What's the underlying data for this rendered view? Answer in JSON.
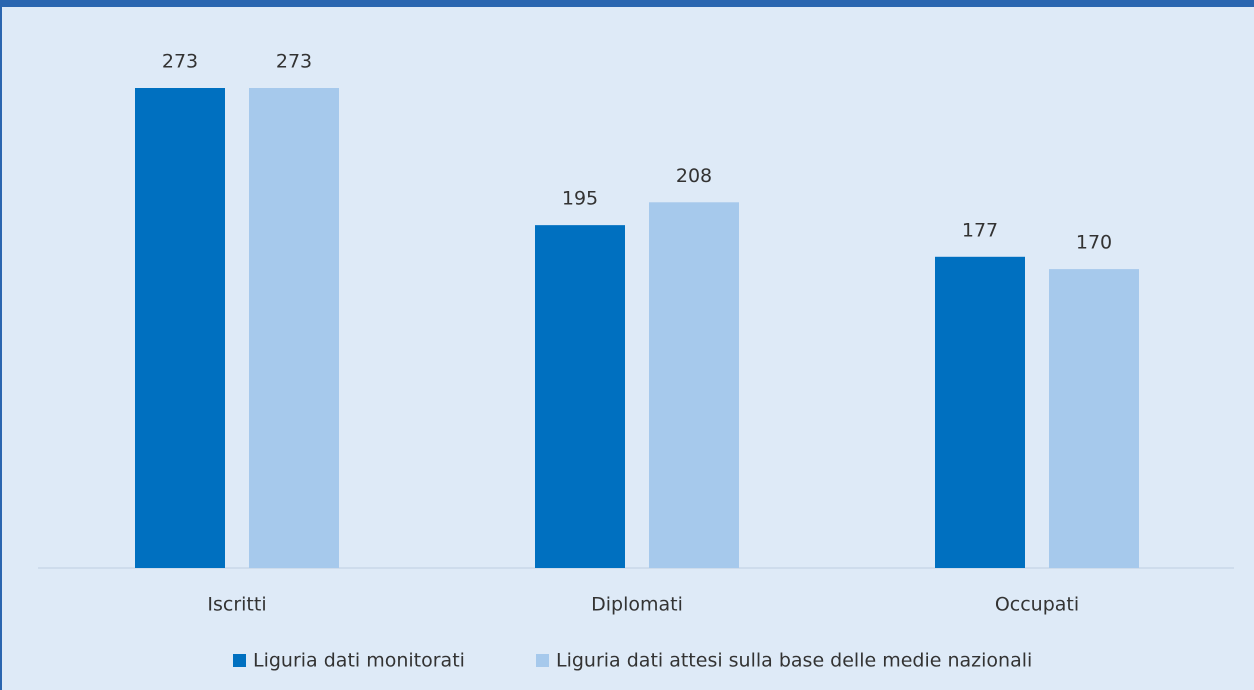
{
  "chart_data": {
    "type": "bar",
    "categories": [
      "Iscritti",
      "Diplomati",
      "Occupati"
    ],
    "series": [
      {
        "name": "Liguria dati monitorati",
        "color": "#0070c0",
        "values": [
          273,
          195,
          177
        ]
      },
      {
        "name": "Liguria dati attesi sulla base delle medie nazionali",
        "color": "#a6c9ec",
        "values": [
          273,
          208,
          170
        ]
      }
    ]
  }
}
